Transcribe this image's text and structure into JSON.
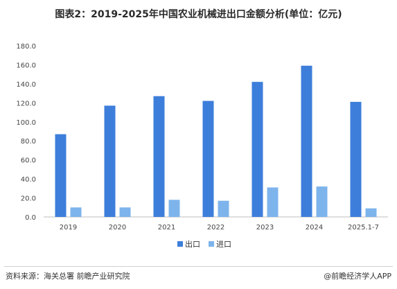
{
  "title": "图表2：2019-2025年中国农业机械进出口金额分析(单位：亿元)",
  "chart_data": {
    "type": "bar",
    "categories": [
      "2019",
      "2020",
      "2021",
      "2022",
      "2023",
      "2024",
      "2025.1-7"
    ],
    "series": [
      {
        "name": "出口",
        "color": "#3d7edb",
        "values": [
          87,
          117,
          127,
          122,
          142,
          159,
          121
        ]
      },
      {
        "name": "进口",
        "color": "#7eb4ec",
        "values": [
          10,
          10,
          18,
          17,
          31,
          32,
          9
        ]
      }
    ],
    "ylim": [
      0,
      180
    ],
    "yticks": [
      "0.0",
      "20.0",
      "40.0",
      "60.0",
      "80.0",
      "100.0",
      "120.0",
      "140.0",
      "160.0",
      "180.0"
    ],
    "legend_position": "bottom-center",
    "grid": false
  },
  "footer": {
    "source": "资料来源：海关总署 前瞻产业研究院",
    "brand": "@前瞻经济学人APP"
  }
}
